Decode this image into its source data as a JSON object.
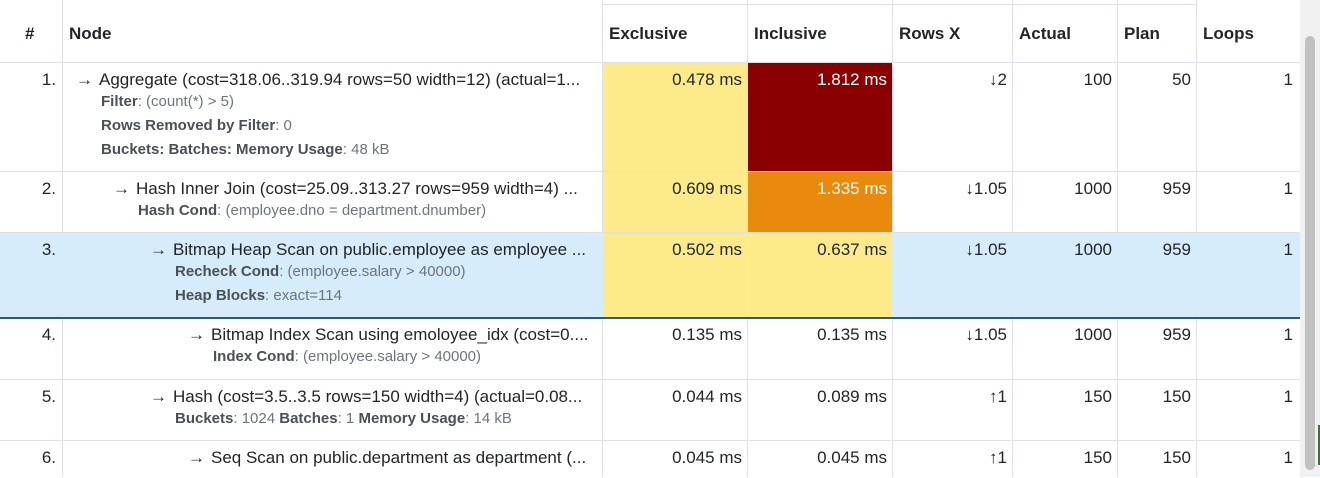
{
  "columns": {
    "num": "#",
    "node": "Node",
    "exclusive": "Exclusive",
    "inclusive": "Inclusive",
    "rows_x": "Rows X",
    "actual": "Actual",
    "plan": "Plan",
    "loops": "Loops"
  },
  "colors": {
    "exclusive_bg": "#fdeb8a",
    "inclusive_high": "#8a0000",
    "inclusive_mid": "#ea8a0c",
    "selected_row": "#d6ecfa"
  },
  "rows": [
    {
      "num": "1.",
      "arrow": "→",
      "title": "Aggregate (cost=318.06..319.94 rows=50 width=12) (actual=1...",
      "details": [
        {
          "k": "Filter",
          "v": ": (count(*) > 5)"
        },
        {
          "k": "Rows Removed by Filter",
          "v": ": 0"
        },
        {
          "k": "Buckets:  Batches:  Memory Usage",
          "v": ": 48 kB"
        }
      ],
      "exclusive": "0.478 ms",
      "inclusive": "1.812 ms",
      "rows_x": "↓2",
      "actual": "100",
      "plan": "50",
      "loops": "1"
    },
    {
      "num": "2.",
      "arrow": "→",
      "title": "Hash Inner Join (cost=25.09..313.27 rows=959 width=4) ...",
      "details": [
        {
          "k": "Hash Cond",
          "v": ": (employee.dno = department.dnumber)"
        }
      ],
      "exclusive": "0.609 ms",
      "inclusive": "1.335 ms",
      "rows_x": "↓1.05",
      "actual": "1000",
      "plan": "959",
      "loops": "1"
    },
    {
      "num": "3.",
      "arrow": "→",
      "title": "Bitmap Heap Scan on public.employee as employee ...",
      "details": [
        {
          "k": "Recheck Cond",
          "v": ": (employee.salary > 40000)"
        },
        {
          "k": "Heap Blocks",
          "v": ": exact=114"
        }
      ],
      "exclusive": "0.502 ms",
      "inclusive": "0.637 ms",
      "rows_x": "↓1.05",
      "actual": "1000",
      "plan": "959",
      "loops": "1"
    },
    {
      "num": "4.",
      "arrow": "→",
      "title": "Bitmap Index Scan using emoloyee_idx (cost=0....",
      "details": [
        {
          "k": "Index Cond",
          "v": ": (employee.salary > 40000)"
        }
      ],
      "exclusive": "0.135 ms",
      "inclusive": "0.135 ms",
      "rows_x": "↓1.05",
      "actual": "1000",
      "plan": "959",
      "loops": "1"
    },
    {
      "num": "5.",
      "arrow": "→",
      "title": "Hash (cost=3.5..3.5 rows=150 width=4) (actual=0.08...",
      "details": [
        {
          "k": "Buckets",
          "v": ": 1024 "
        },
        {
          "k": "Batches",
          "v": ": 1 "
        },
        {
          "k": "Memory Usage",
          "v": ": 14 kB"
        }
      ],
      "exclusive": "0.044 ms",
      "inclusive": "0.089 ms",
      "rows_x": "↑1",
      "actual": "150",
      "plan": "150",
      "loops": "1"
    },
    {
      "num": "6.",
      "arrow": "→",
      "title": "Seq Scan on public.department as department (...",
      "details": [],
      "exclusive": "0.045 ms",
      "inclusive": "0.045 ms",
      "rows_x": "↑1",
      "actual": "150",
      "plan": "150",
      "loops": "1"
    }
  ]
}
